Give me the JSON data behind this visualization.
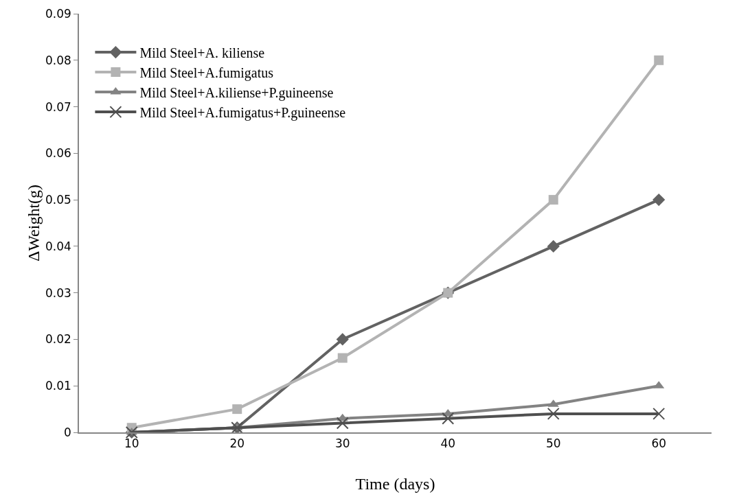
{
  "chart_data": {
    "type": "line",
    "xlabel": "Time (days)",
    "ylabel": "ΔWeight(g)",
    "categories": [
      "10",
      "20",
      "30",
      "40",
      "50",
      "60"
    ],
    "ylim": [
      0,
      0.09
    ],
    "yticks": [
      "0",
      0.01,
      0.02,
      0.03,
      0.04,
      0.05,
      0.06,
      0.07,
      0.08,
      0.09
    ],
    "grid": false,
    "legend": "top left",
    "line_style": "solid",
    "series": [
      {
        "name": "Mild Steel+A. kiliense",
        "color": "#626262",
        "marker": "diamond",
        "values": [
          0,
          0.001,
          0.02,
          0.03,
          0.04,
          0.05
        ]
      },
      {
        "name": "Mild Steel+A.fumigatus",
        "color": "#b3b3b3",
        "marker": "square",
        "values": [
          0.001,
          0.005,
          0.016,
          0.03,
          0.05,
          0.08
        ]
      },
      {
        "name": "Mild Steel+A.kiliense+P.guineense",
        "color": "#838383",
        "marker": "triangle",
        "values": [
          0,
          0.001,
          0.003,
          0.004,
          0.006,
          0.01
        ]
      },
      {
        "name": "Mild Steel+A.fumigatus+P.guineense",
        "color": "#4f4f4f",
        "marker": "cross",
        "values": [
          0,
          0.001,
          0.002,
          0.003,
          0.004,
          0.004
        ]
      }
    ]
  }
}
